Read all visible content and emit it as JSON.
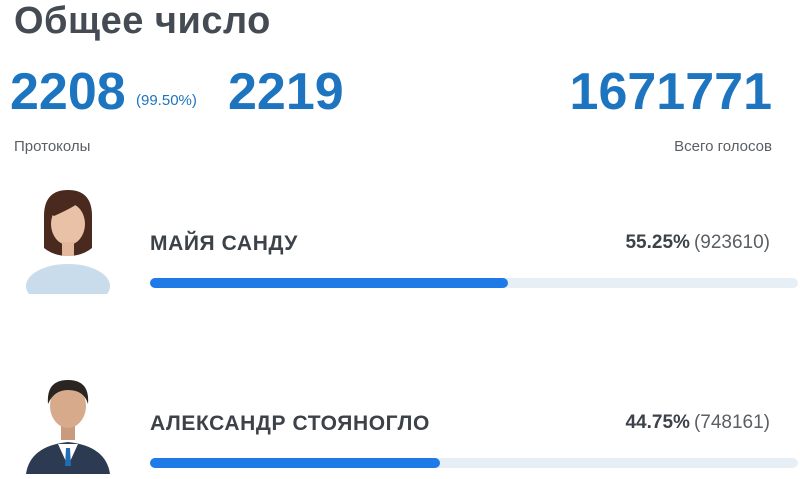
{
  "header": {
    "title": "Общее число"
  },
  "stats": {
    "processed_count": "2208",
    "processed_percent": "(99.50%)",
    "total_protocols": "2219",
    "total_votes": "1671771",
    "protocols_label": "Протоколы",
    "votes_label": "Всего голосов"
  },
  "candidates": [
    {
      "name": "МАЙЯ САНДУ",
      "percent_text": "55.25%",
      "votes_text": "(923610)",
      "share": 0.5525
    },
    {
      "name": "АЛЕКСАНДР СТОЯНОГЛО",
      "percent_text": "44.75%",
      "votes_text": "(748161)",
      "share": 0.4475
    }
  ],
  "colors": {
    "accent": "#1d74bf",
    "bar": "#1e7ae6",
    "track": "#e6eef6"
  },
  "icons": {
    "candidate_photo": "person-photo-icon"
  }
}
